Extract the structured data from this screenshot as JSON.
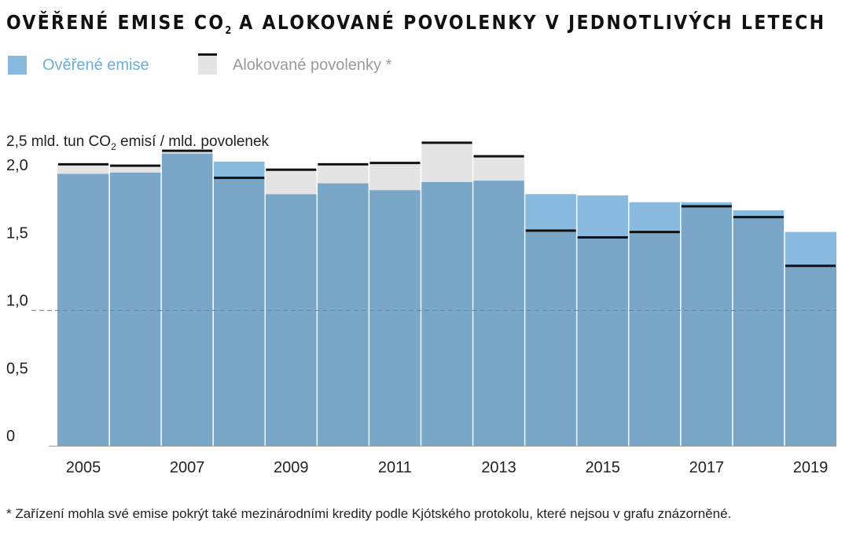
{
  "title": {
    "main": "OVĚŘENÉ EMISE CO",
    "sub": "2",
    "rest": " A ALOKOVANÉ POVOLENKY V JEDNOTLIVÝCH LETECH"
  },
  "legend": {
    "emissions_label": "Ověřené emise",
    "allowances_label": "Alokované povolenky *"
  },
  "y_axis_title": {
    "before": "2,5 mld. tun CO",
    "sub": "2",
    "after": " emisí / mld. povolenek"
  },
  "colors": {
    "emissions_over": "#88b9de",
    "emissions_base": "#7aa7c7",
    "allowance_fill": "#e4e4e4",
    "allowance_marker": "#111111",
    "legend_emissions_text": "#6aaedc",
    "legend_allowances_text": "#9a9a9a"
  },
  "footnote": "* Zařízení mohla své emise pokrýt také mezinárodními kredity podle Kjótského protokolu, které nejsou v grafu znázorněné.",
  "chart_data": {
    "type": "bar",
    "categories": [
      "2005",
      "2006",
      "2007",
      "2008",
      "2009",
      "2010",
      "2011",
      "2012",
      "2013",
      "2014",
      "2015",
      "2016",
      "2017",
      "2018",
      "2019"
    ],
    "x_tick_labels": [
      "2005",
      "",
      "2007",
      "",
      "2009",
      "",
      "2011",
      "",
      "2013",
      "",
      "2015",
      "",
      "2017",
      "",
      "2019"
    ],
    "series": [
      {
        "name": "Ověřené emise",
        "values": [
          2.01,
          2.02,
          2.16,
          2.1,
          1.86,
          1.94,
          1.89,
          1.95,
          1.96,
          1.86,
          1.85,
          1.8,
          1.8,
          1.74,
          1.58
        ]
      },
      {
        "name": "Alokované povolenky *",
        "values": [
          2.08,
          2.07,
          2.18,
          1.98,
          2.04,
          2.08,
          2.09,
          2.24,
          2.14,
          1.59,
          1.54,
          1.58,
          1.77,
          1.69,
          1.33
        ]
      }
    ],
    "y_tick_labels": [
      "0",
      "0,5",
      "1,0",
      "1,5",
      "2,0"
    ],
    "y_ticks": [
      0,
      0.5,
      1.0,
      1.5,
      2.0
    ],
    "ylim": [
      0,
      2.5
    ],
    "reference_line": 1.0,
    "ylabel": "2,5 mld. tun CO2 emisí / mld. povolenek"
  }
}
